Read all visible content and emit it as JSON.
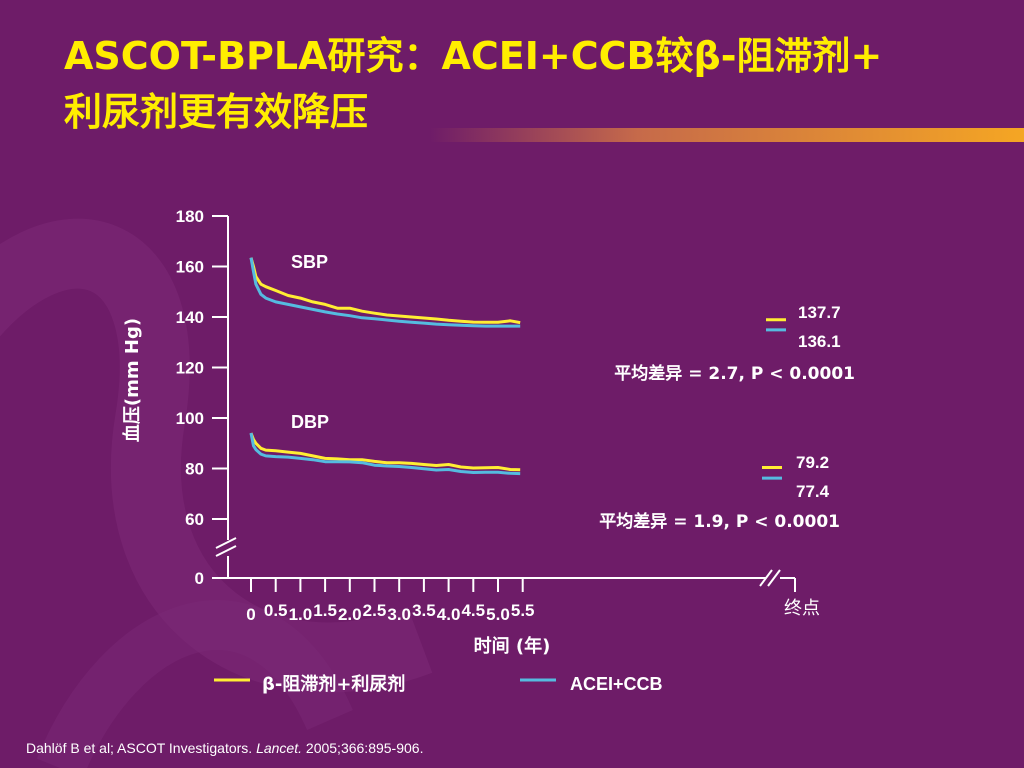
{
  "slide": {
    "title_line1": "ASCOT-BPLA研究：ACEI+CCB较β-阻滞剂+",
    "title_line2": "利尿剂更有效降压",
    "citation": {
      "authors": "Dahlöf B et al; ASCOT Investigators.",
      "journal": "Lancet.",
      "ref": "2005;366:895-906."
    }
  },
  "colors": {
    "background": "#6e1c68",
    "title": "#ffee00",
    "beta_blocker_series": "#ffee33",
    "acei_ccb_series": "#55bbe0",
    "title_bar": "#f5a623",
    "axis": "#ffffff"
  },
  "chart_data": {
    "type": "line",
    "xlabel": "时间 (年)",
    "ylabel": "血压(mm Hg)",
    "x_ticks": [
      "0",
      "0.5",
      "1.0",
      "1.5",
      "2.0",
      "2.5",
      "3.0",
      "3.5",
      "4.0",
      "4.5",
      "5.0",
      "5.5"
    ],
    "x_end_label": "终点",
    "y_ticks": [
      "180",
      "160",
      "140",
      "120",
      "100",
      "80",
      "60",
      "0"
    ],
    "ylim": [
      60,
      180
    ],
    "axis_break": "y between 0 and 60; x between 5.5 and endpoint",
    "legend_placement": "bottom",
    "series": [
      {
        "name": "β-阻滞剂+利尿剂",
        "group": "SBP",
        "color": "#ffee33",
        "x": [
          0,
          0.05,
          0.1,
          0.2,
          0.3,
          0.5,
          0.75,
          1.0,
          1.25,
          1.5,
          1.75,
          2.0,
          2.25,
          2.5,
          2.75,
          3.0,
          3.25,
          3.5,
          3.75,
          4.0,
          4.25,
          4.5,
          4.75,
          5.0,
          5.25,
          5.45
        ],
        "values": [
          163.5,
          160,
          156,
          153,
          152,
          150.5,
          148.5,
          147.5,
          146,
          145,
          143.5,
          143.5,
          142.3,
          141.5,
          140.8,
          140.4,
          140,
          139.6,
          139.2,
          138.7,
          138.3,
          138,
          137.9,
          137.9,
          138.5,
          137.8
        ]
      },
      {
        "name": "ACEI+CCB",
        "group": "SBP",
        "color": "#55bbe0",
        "x": [
          0,
          0.05,
          0.1,
          0.2,
          0.3,
          0.5,
          0.75,
          1.0,
          1.25,
          1.5,
          1.75,
          2.0,
          2.25,
          2.5,
          2.75,
          3.0,
          3.25,
          3.5,
          3.75,
          4.0,
          4.25,
          4.5,
          4.75,
          5.0,
          5.25,
          5.45
        ],
        "values": [
          163.5,
          158,
          153,
          149,
          147.5,
          146,
          145,
          144,
          143,
          142,
          141.2,
          140.5,
          139.7,
          139.3,
          138.8,
          138.3,
          137.9,
          137.6,
          137.2,
          136.9,
          136.7,
          136.5,
          136.4,
          136.4,
          136.4,
          136.4
        ]
      },
      {
        "name": "β-阻滞剂+利尿剂",
        "group": "DBP",
        "color": "#ffee33",
        "x": [
          0,
          0.05,
          0.1,
          0.2,
          0.3,
          0.5,
          0.75,
          1.0,
          1.25,
          1.5,
          1.75,
          2.0,
          2.25,
          2.5,
          2.75,
          3.0,
          3.25,
          3.5,
          3.75,
          4.0,
          4.25,
          4.5,
          4.75,
          5.0,
          5.25,
          5.45
        ],
        "values": [
          94,
          91.5,
          90,
          88,
          87.3,
          87,
          86.5,
          86,
          85,
          84,
          83.8,
          83.5,
          83.5,
          82.8,
          82.3,
          82.3,
          82,
          81.6,
          81.2,
          81.6,
          80.6,
          80.2,
          80.3,
          80.4,
          79.6,
          79.5
        ]
      },
      {
        "name": "ACEI+CCB",
        "group": "DBP",
        "color": "#55bbe0",
        "x": [
          0,
          0.05,
          0.1,
          0.2,
          0.3,
          0.5,
          0.75,
          1.0,
          1.25,
          1.5,
          1.75,
          2.0,
          2.25,
          2.5,
          2.75,
          3.0,
          3.25,
          3.5,
          3.75,
          4.0,
          4.25,
          4.5,
          4.75,
          5.0,
          5.25,
          5.45
        ],
        "values": [
          94,
          89,
          87.5,
          85.7,
          85,
          84.7,
          84.5,
          84,
          83.5,
          82.7,
          82.7,
          82.6,
          82.3,
          81.3,
          81,
          80.8,
          80.4,
          79.9,
          79.4,
          79.6,
          78.8,
          78.4,
          78.5,
          78.5,
          78.1,
          78
        ]
      }
    ],
    "endpoints": {
      "sbp": [
        137.7,
        136.1
      ],
      "dbp": [
        79.2,
        77.4
      ]
    },
    "annotations": {
      "sbp_label": "SBP",
      "dbp_label": "DBP",
      "sbp_endpoint_labels": [
        "137.7",
        "136.1"
      ],
      "dbp_endpoint_labels": [
        "79.2",
        "77.4"
      ],
      "sbp_stat": "平均差异 = 2.7, P < 0.0001",
      "dbp_stat": "平均差异 = 1.9, P < 0.0001"
    },
    "legend": [
      {
        "label": "β-阻滞剂+利尿剂",
        "color": "#ffee33"
      },
      {
        "label": "ACEI+CCB",
        "color": "#55bbe0"
      }
    ]
  }
}
